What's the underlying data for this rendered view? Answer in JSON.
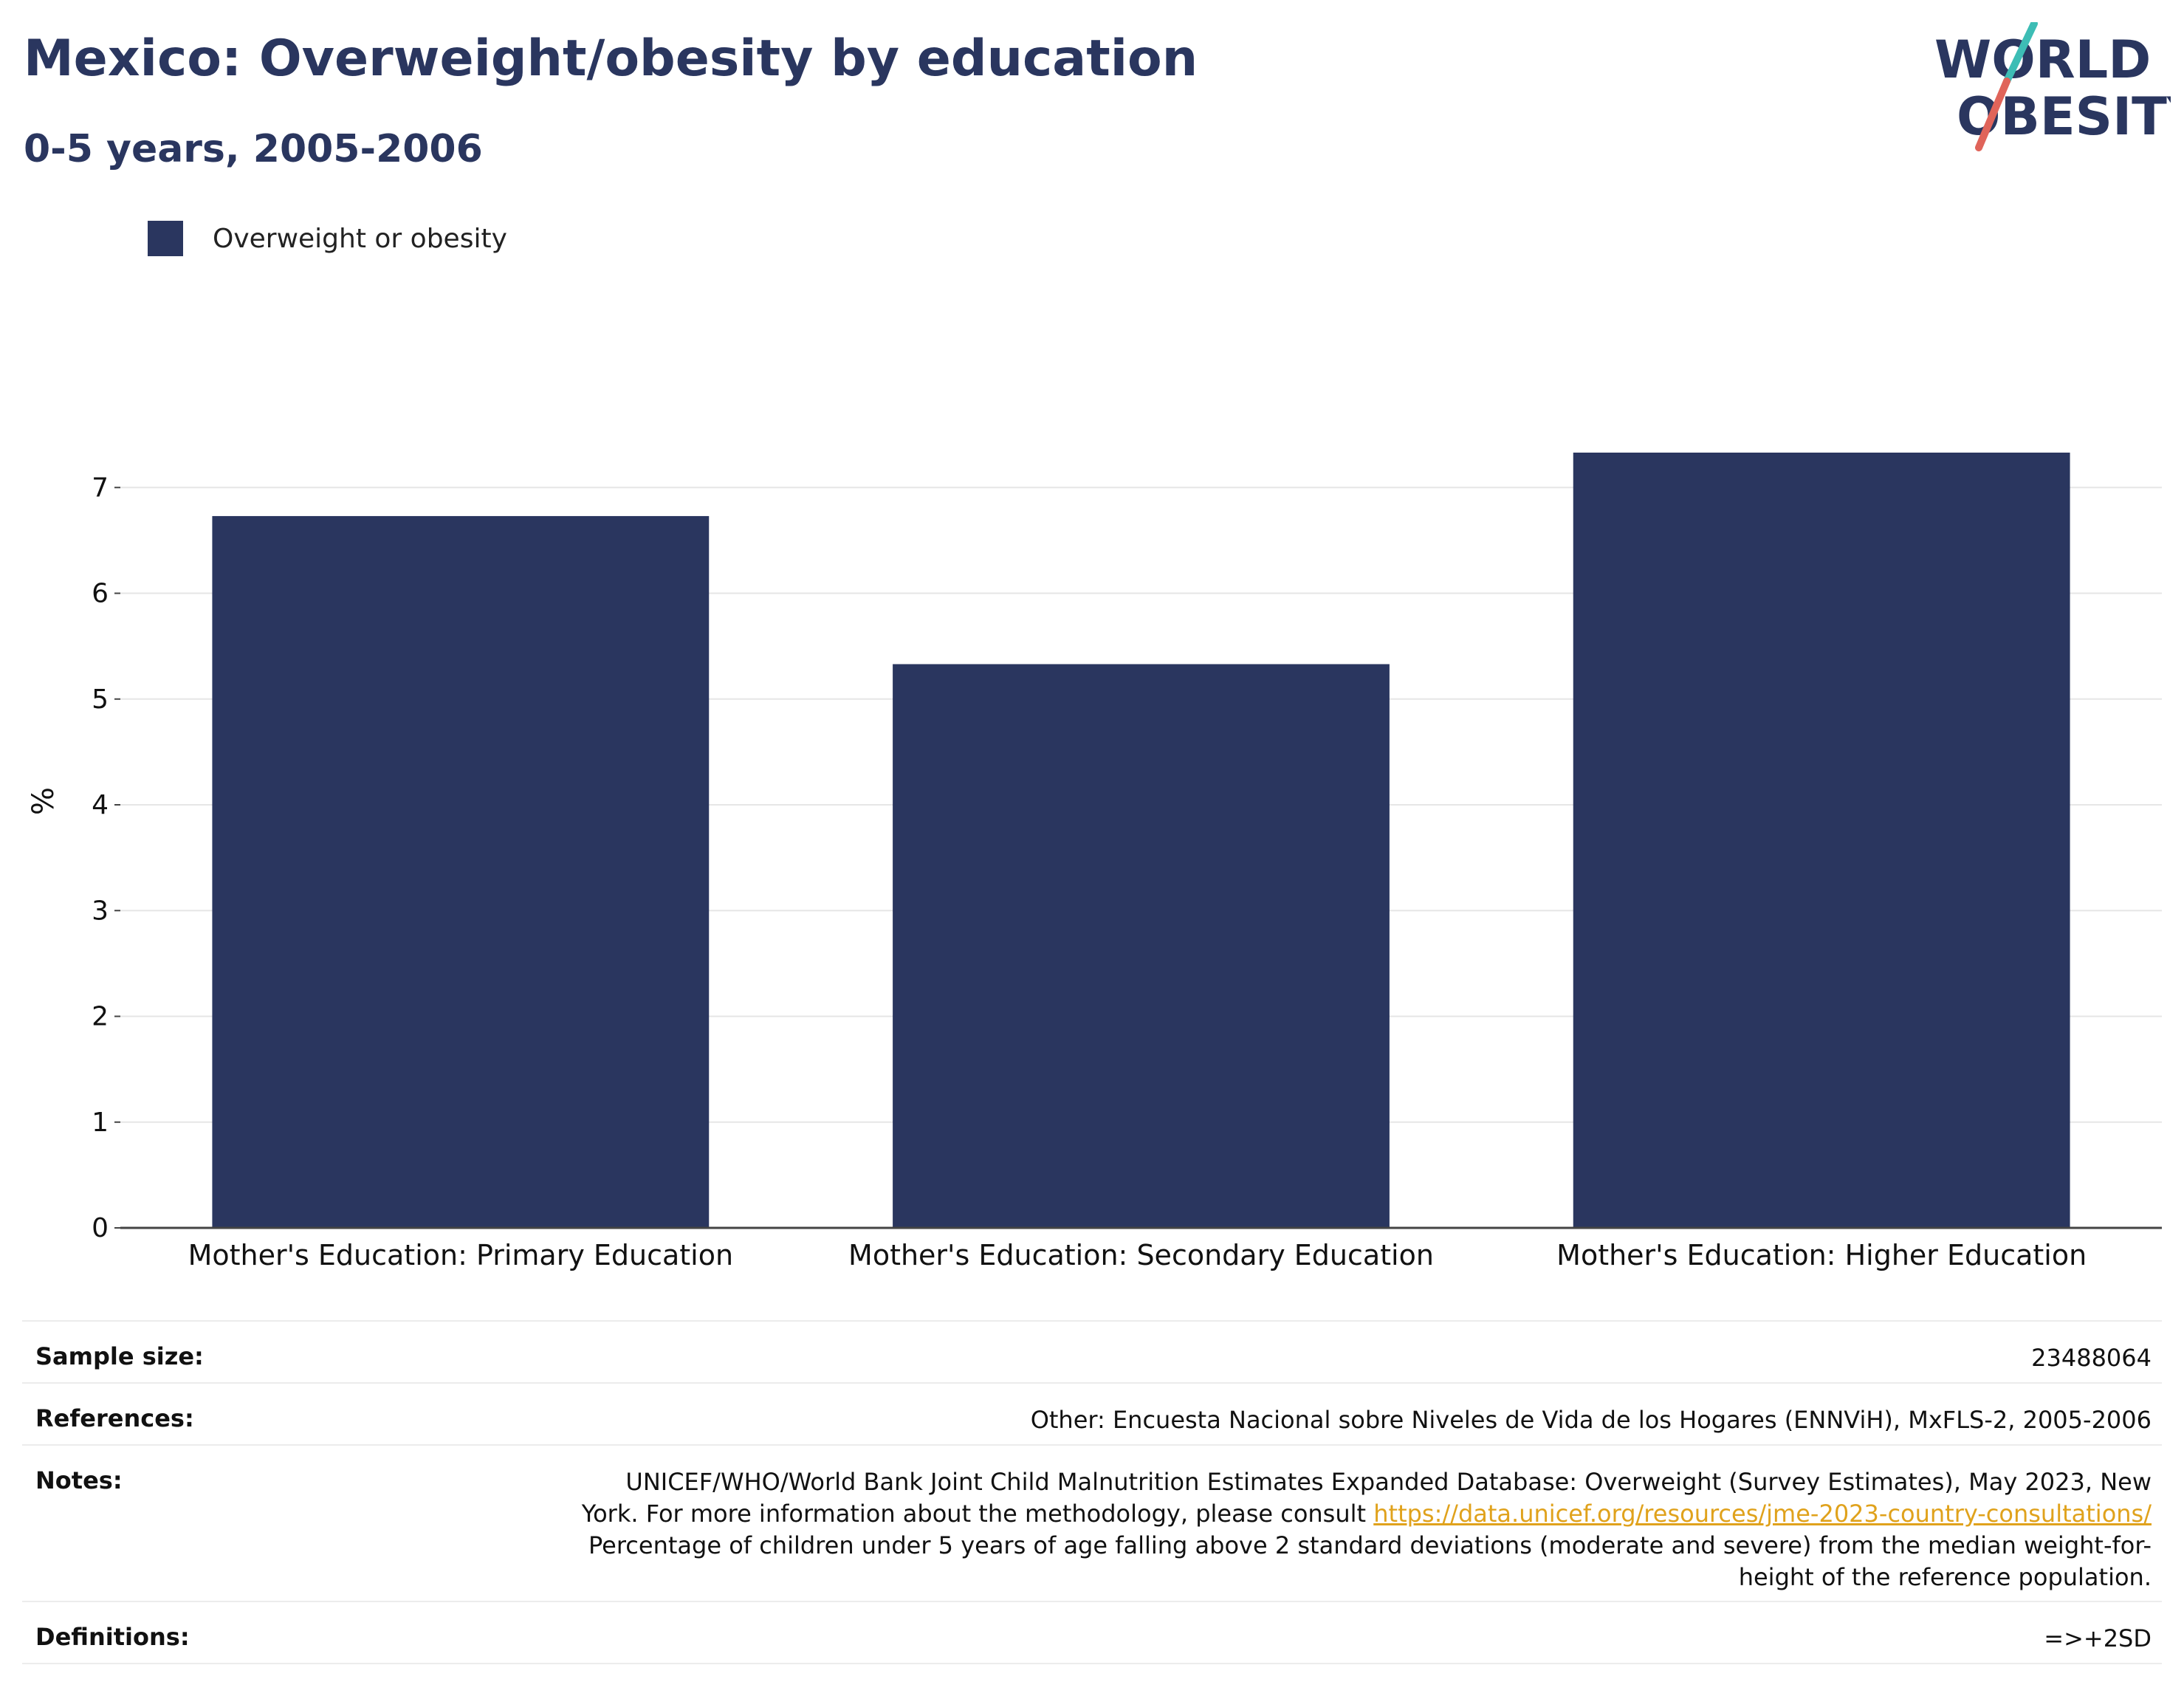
{
  "header": {
    "title": "Mexico: Overweight/obesity by education",
    "subtitle": "0-5 years, 2005-2006"
  },
  "logo": {
    "line1": "WORLD",
    "line2": "OBESITY",
    "colors": {
      "text": "#2a365f",
      "slash_top": "#3dbdb5",
      "slash_bottom": "#e0645a"
    }
  },
  "legend": {
    "label": "Overweight or obesity",
    "color": "#2a365f"
  },
  "chart_data": {
    "type": "bar",
    "categories": [
      "Mother's Education: Primary Education",
      "Mother's Education: Secondary Education",
      "Mother's Education: Higher Education"
    ],
    "series": [
      {
        "name": "Overweight or obesity",
        "values": [
          6.73,
          5.33,
          7.33
        ],
        "color": "#2a365f"
      }
    ],
    "ylabel": "%",
    "xlabel": "",
    "ylim": [
      0,
      7.7
    ],
    "yticks": [
      0,
      1,
      2,
      3,
      4,
      5,
      6,
      7
    ],
    "grid": true,
    "legend_position": "top-left"
  },
  "info": {
    "sample_size_label": "Sample size:",
    "sample_size_value": "23488064",
    "references_label": "References:",
    "references_value": "Other: Encuesta Nacional sobre Niveles de Vida de los Hogares (ENNViH), MxFLS-2, 2005-2006",
    "notes_label": "Notes:",
    "notes_line1": "UNICEF/WHO/World Bank Joint Child Malnutrition Estimates Expanded Database: Overweight (Survey Estimates), May 2023, New",
    "notes_line2_prefix": "York. For more information about the methodology, please consult ",
    "notes_link": "https://data.unicef.org/resources/jme-2023-country-consultations/",
    "notes_line3": "Percentage of children under 5 years of age falling above 2 standard deviations (moderate and severe) from the median weight-for-",
    "notes_line4": "height of the reference population.",
    "definitions_label": "Definitions:",
    "definitions_value": "=>+2SD",
    "link_color": "#e0a21c"
  }
}
